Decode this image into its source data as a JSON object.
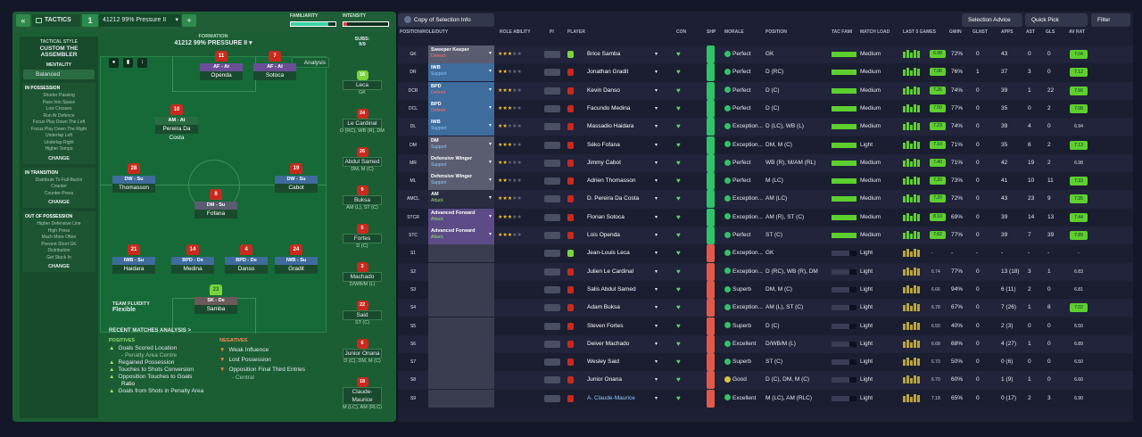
{
  "tactics": {
    "title": "TACTICS",
    "slot": "1",
    "name": "41212 99% Pressure II",
    "familiarity_label": "FAMILIARITY",
    "intensity_label": "INTENSITY",
    "familiarity_pct": 0.83,
    "intensity_pct": 0.08,
    "style_label": "TACTICAL STYLE",
    "style_value": "CUSTOM THE ASSEMBLER",
    "mentality_label": "MENTALITY",
    "mentality_value": "Balanced",
    "formation_label": "FORMATION",
    "formation_value": "41212 99% PRESSURE II",
    "analysis": "Analysis",
    "subs_label": "SUBS:",
    "subs_count": "9/9",
    "fluidity_label": "TEAM FLUIDITY",
    "fluidity_value": "Flexible"
  },
  "sections": [
    {
      "title": "IN POSSESSION",
      "items": [
        "Shorter Passing",
        "Pass Into Space",
        "Low Crosses",
        "Run At Defence",
        "Focus Play Down The Left",
        "Focus Play Down The Right",
        "Underlap Left",
        "Underlap Right",
        "Higher Tempo"
      ],
      "change": "CHANGE"
    },
    {
      "title": "IN TRANSITION",
      "items": [
        "Distribute To Full-Backs",
        "Counter",
        "Counter-Press"
      ],
      "change": "CHANGE"
    },
    {
      "title": "OUT OF POSSESSION",
      "items": [
        "Higher Defensive Line",
        "High Press",
        "Much More Often",
        "Prevent Short GK",
        "Distribution",
        "Get Stuck In"
      ],
      "change": "CHANGE"
    }
  ],
  "pitch_players": [
    {
      "num": "11",
      "role": "AF - At",
      "name": "Openda"
    },
    {
      "num": "7",
      "role": "AF - At",
      "name": "Sotoca"
    },
    {
      "num": "10",
      "role": "AM - At",
      "name": "Pereira Da Costa"
    },
    {
      "num": "28",
      "role": "DW - Su",
      "name": "Thomasson"
    },
    {
      "num": "19",
      "role": "DW - Su",
      "name": "Cabot"
    },
    {
      "num": "8",
      "role": "DM - Su",
      "name": "Fofana"
    },
    {
      "num": "21",
      "role": "IWB - Su",
      "name": "Haidara"
    },
    {
      "num": "14",
      "role": "BPD - De",
      "name": "Medina"
    },
    {
      "num": "4",
      "role": "BPD - De",
      "name": "Danso"
    },
    {
      "num": "24",
      "role": "IWB - Su",
      "name": "Gradit"
    },
    {
      "num": "23",
      "role": "SK - De",
      "name": "Samba"
    }
  ],
  "subs": [
    {
      "num": "16",
      "name": "Leca",
      "pos": "GK"
    },
    {
      "num": "24",
      "name": "Le Cardinal",
      "pos": "D (RC), WB (R), DM"
    },
    {
      "num": "26",
      "name": "Abdul Samed",
      "pos": "DM, M (C)"
    },
    {
      "num": "9",
      "name": "Buksa",
      "pos": "AM (L), ST (C)"
    },
    {
      "num": "5",
      "name": "Fortes",
      "pos": "D (C)"
    },
    {
      "num": "3",
      "name": "Machado",
      "pos": "D/WB/M (L)"
    },
    {
      "num": "22",
      "name": "Said",
      "pos": "ST (C)"
    },
    {
      "num": "6",
      "name": "Junior Onana",
      "pos": "D (C), DM, M (C)"
    },
    {
      "num": "18",
      "name": "Claude-Maurice",
      "pos": "M (LC), AM (RLC)"
    }
  ],
  "analysis": {
    "title": "RECENT MATCHES ANALYSIS >",
    "positives_label": "POSITIVES",
    "negatives_label": "NEGATIVES",
    "positives": [
      "Goals Scored Location",
      "- Penalty Area Centre",
      "Regained Possession",
      "Touches to Shots Conversion",
      "Opposition Touches to Goals",
      "Ratio",
      "Goals from Shots in Penalty Area"
    ],
    "negatives": [
      "Weak Influence",
      "Lost Possession",
      "Opposition Final Third Entries",
      "- Central"
    ]
  },
  "rightpanel": {
    "info_button": "Copy of Selection Info",
    "selection_advice": "Selection Advice",
    "quick_pick": "Quick Pick",
    "filter": "Filter",
    "headers": [
      "POSITION/ROLE/DUTY",
      "ROLE ABILITY",
      "PI",
      "PLAYER",
      "CON",
      "SHP",
      "MORALE",
      "POSITION",
      "TAC FAMI",
      "MATCH LOAD",
      "LAST 5 GAMES",
      "GWIN",
      "GLNST",
      "APPS",
      "AST",
      "GLS",
      "AV RAT"
    ]
  },
  "rows": [
    {
      "pos": "GK",
      "role": "Sweeper Keeper",
      "duty": "Defend",
      "stars": 3,
      "player": "Brice Samba",
      "morale": "Perfect",
      "position": "GK",
      "load": "Medium",
      "form": "6.98",
      "gwin": "72%",
      "glnst": "0",
      "apps": "43",
      "ast": "0",
      "gls": "0",
      "rat": "7.04",
      "color": "#5a5d70"
    },
    {
      "pos": "DR",
      "role": "IWB",
      "duty": "Support",
      "stars": 2,
      "player": "Jonathan Gradit",
      "morale": "Perfect",
      "position": "D (RC)",
      "load": "Medium",
      "form": "7.06",
      "gwin": "76%",
      "glnst": "1",
      "apps": "37",
      "ast": "3",
      "gls": "0",
      "rat": "7.12",
      "color": "#3e6c9c"
    },
    {
      "pos": "DCR",
      "role": "BPD",
      "duty": "Defend",
      "stars": 3,
      "player": "Kevin Danso",
      "morale": "Perfect",
      "position": "D (C)",
      "load": "Medium",
      "form": "7.26",
      "gwin": "74%",
      "glnst": "0",
      "apps": "39",
      "ast": "1",
      "gls": "22",
      "rat": "7.56",
      "color": "#3e6c9c"
    },
    {
      "pos": "DCL",
      "role": "BPD",
      "duty": "Defend",
      "stars": 3,
      "player": "Facundo Medina",
      "morale": "Perfect",
      "position": "D (C)",
      "load": "Medium",
      "form": "7.50",
      "gwin": "77%",
      "glnst": "0",
      "apps": "35",
      "ast": "0",
      "gls": "2",
      "rat": "7.08",
      "color": "#3e6c9c"
    },
    {
      "pos": "DL",
      "role": "IWB",
      "duty": "Support",
      "stars": 2,
      "player": "Massadio Haidara",
      "morale": "Exception...",
      "position": "D (LC), WB (L)",
      "load": "Medium",
      "form": "7.23",
      "gwin": "74%",
      "glnst": "0",
      "apps": "39",
      "ast": "4",
      "gls": "0",
      "rat": "6.94",
      "color": "#3e6c9c"
    },
    {
      "pos": "DM",
      "role": "DM",
      "duty": "Support",
      "stars": 3,
      "player": "Séko Fofana",
      "morale": "Exception...",
      "position": "DM, M (C)",
      "load": "Light",
      "form": "7.10",
      "gwin": "71%",
      "glnst": "0",
      "apps": "35",
      "ast": "6",
      "gls": "2",
      "rat": "7.13",
      "color": "#5a5d70"
    },
    {
      "pos": "MR",
      "role": "Defensive Winger",
      "duty": "Support",
      "stars": 2,
      "player": "Jimmy Cabot",
      "morale": "Perfect",
      "position": "WB (R), M/AM (RL)",
      "load": "Medium",
      "form": "7.40",
      "gwin": "71%",
      "glnst": "0",
      "apps": "42",
      "ast": "19",
      "gls": "2",
      "rat": "6.98",
      "color": "#5a5d70"
    },
    {
      "pos": "ML",
      "role": "Defensive Winger",
      "duty": "Support",
      "stars": 2,
      "player": "Adrien Thomasson",
      "morale": "Perfect",
      "position": "M (LC)",
      "load": "Medium",
      "form": "7.20",
      "gwin": "73%",
      "glnst": "0",
      "apps": "41",
      "ast": "10",
      "gls": "11",
      "rat": "7.33",
      "color": "#5a5d70"
    },
    {
      "pos": "AMCL",
      "role": "AM",
      "duty": "Attack",
      "stars": 3,
      "player": "D. Pereira Da Costa",
      "morale": "Exception...",
      "position": "AM (LC)",
      "load": "Medium",
      "form": "7.20",
      "gwin": "72%",
      "glnst": "0",
      "apps": "43",
      "ast": "23",
      "gls": "9",
      "rat": "7.35",
      "color": "#2a2d40"
    },
    {
      "pos": "STCR",
      "role": "Advanced Forward",
      "duty": "Attack",
      "stars": 3,
      "player": "Florian Sotoca",
      "morale": "Exception...",
      "position": "AM (R), ST (C)",
      "load": "Medium",
      "form": "8.10",
      "gwin": "69%",
      "glnst": "0",
      "apps": "39",
      "ast": "14",
      "gls": "13",
      "rat": "7.44",
      "color": "#5c4b86"
    },
    {
      "pos": "STC",
      "role": "Advanced Forward",
      "duty": "Attack",
      "stars": 3,
      "player": "Lois Openda",
      "morale": "Perfect",
      "position": "ST (C)",
      "load": "Medium",
      "form": "7.62",
      "gwin": "77%",
      "glnst": "0",
      "apps": "39",
      "ast": "7",
      "gls": "39",
      "rat": "7.89",
      "color": "#5c4b86"
    },
    {
      "pos": "S1",
      "player": "Jean-Louis Leca",
      "morale": "Exception...",
      "position": "GK",
      "load": "Light",
      "form": "-",
      "gwin": "-",
      "glnst": "-",
      "apps": "-",
      "ast": "-",
      "gls": "-",
      "rat": "-"
    },
    {
      "pos": "S2",
      "player": "Julien Le Cardinal",
      "morale": "Exception...",
      "position": "D (RC), WB (R), DM",
      "load": "Light",
      "form": "6.74",
      "gwin": "77%",
      "glnst": "0",
      "apps": "13 (18)",
      "ast": "3",
      "gls": "1",
      "rat": "6.83"
    },
    {
      "pos": "S3",
      "player": "Salis Abdul Samed",
      "morale": "Superb",
      "position": "DM, M (C)",
      "load": "Light",
      "form": "6.66",
      "gwin": "94%",
      "glnst": "0",
      "apps": "6 (11)",
      "ast": "2",
      "gls": "0",
      "rat": "6.81"
    },
    {
      "pos": "S4",
      "player": "Adam Buksa",
      "morale": "Exception...",
      "position": "AM (L), ST (C)",
      "load": "Light",
      "form": "6.78",
      "gwin": "67%",
      "glnst": "0",
      "apps": "7 (26)",
      "ast": "1",
      "gls": "8",
      "rat": "7.02"
    },
    {
      "pos": "S5",
      "player": "Steven Fortes",
      "morale": "Superb",
      "position": "D (C)",
      "load": "Light",
      "form": "6.50",
      "gwin": "40%",
      "glnst": "0",
      "apps": "2 (3)",
      "ast": "0",
      "gls": "0",
      "rat": "6.50"
    },
    {
      "pos": "S6",
      "player": "Deiver Machado",
      "morale": "Excellent",
      "position": "D/WB/M (L)",
      "load": "Light",
      "form": "6.68",
      "gwin": "68%",
      "glnst": "0",
      "apps": "4 (27)",
      "ast": "1",
      "gls": "0",
      "rat": "6.89"
    },
    {
      "pos": "S7",
      "player": "Wesley Said",
      "morale": "Superb",
      "position": "ST (C)",
      "load": "Light",
      "form": "6.70",
      "gwin": "50%",
      "glnst": "0",
      "apps": "0 (6)",
      "ast": "0",
      "gls": "0",
      "rat": "6.50"
    },
    {
      "pos": "S8",
      "player": "Junior Onana",
      "morale": "Good",
      "position": "D (C), DM, M (C)",
      "load": "Light",
      "form": "6.70",
      "gwin": "60%",
      "glnst": "0",
      "apps": "1 (9)",
      "ast": "1",
      "gls": "0",
      "rat": "6.60"
    },
    {
      "pos": "S9",
      "player": "A. Claude-Maurice",
      "morale": "Excellent",
      "position": "M (LC), AM (RLC)",
      "load": "Light",
      "form": "7.18",
      "gwin": "65%",
      "glnst": "0",
      "apps": "0 (17)",
      "ast": "2",
      "gls": "3",
      "rat": "6.90"
    }
  ]
}
